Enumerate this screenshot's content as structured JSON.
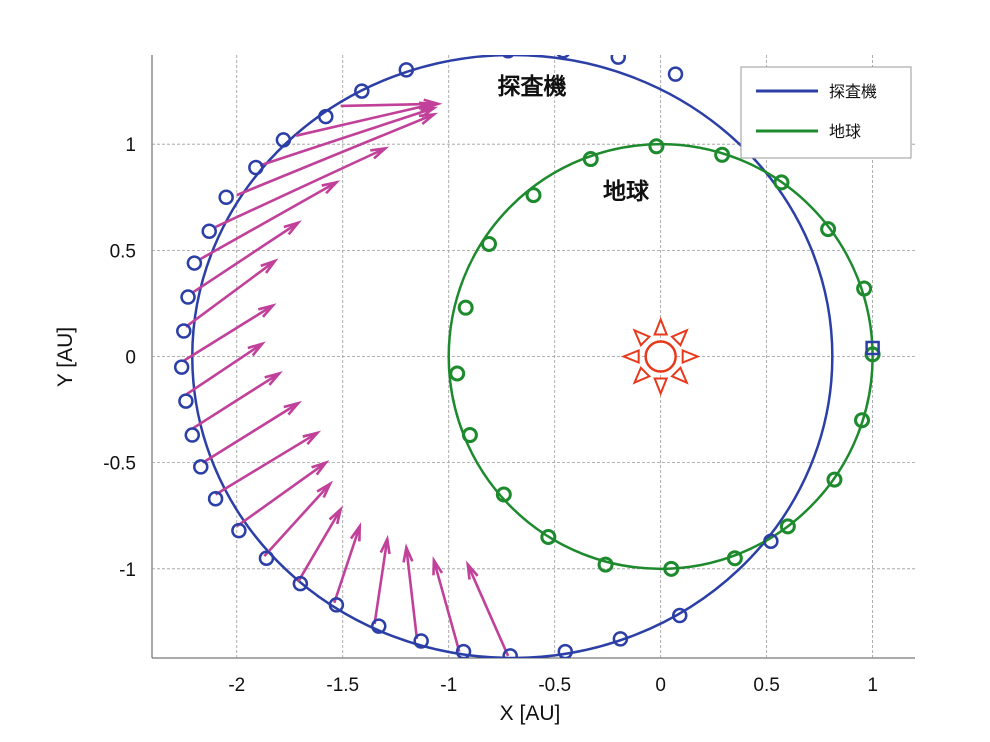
{
  "chart_data": {
    "type": "scatter",
    "title": "",
    "xlabel": "X [AU]",
    "ylabel": "Y [AU]",
    "xlim": [
      -2.4,
      1.2
    ],
    "ylim": [
      -1.42,
      1.42
    ],
    "xticks": [
      "-2",
      "-1.5",
      "-1",
      "-0.5",
      "0",
      "0.5",
      "1"
    ],
    "yticks": [
      "1",
      "0.5",
      "0",
      "-0.5",
      "-1"
    ],
    "grid": true,
    "legend_position": "top-right",
    "colors": {
      "probe": "#2b3fa6",
      "earth": "#1e8a2e",
      "thrust": "#c0409a",
      "sun": "#e8391c"
    },
    "annotations": {
      "probe": "探査機",
      "earth": "地球"
    },
    "series": [
      {
        "name": "探査機",
        "orbit_center": [
          -0.7,
          0.0
        ],
        "orbit_radii": [
          1.51,
          1.42
        ],
        "markers": [
          [
            -0.72,
            1.44
          ],
          [
            -0.46,
            1.44
          ],
          [
            -0.2,
            1.41
          ],
          [
            0.07,
            1.33
          ],
          [
            -1.2,
            1.35
          ],
          [
            -1.41,
            1.25
          ],
          [
            -1.58,
            1.13
          ],
          [
            -1.78,
            1.02
          ],
          [
            -1.91,
            0.89
          ],
          [
            -2.05,
            0.75
          ],
          [
            -2.13,
            0.59
          ],
          [
            -2.2,
            0.44
          ],
          [
            -2.23,
            0.28
          ],
          [
            -2.25,
            0.12
          ],
          [
            -2.26,
            -0.05
          ],
          [
            -2.24,
            -0.21
          ],
          [
            -2.21,
            -0.37
          ],
          [
            -2.17,
            -0.52
          ],
          [
            -2.1,
            -0.67
          ],
          [
            -1.99,
            -0.82
          ],
          [
            -1.86,
            -0.95
          ],
          [
            -1.7,
            -1.07
          ],
          [
            -1.53,
            -1.17
          ],
          [
            -1.33,
            -1.27
          ],
          [
            -1.13,
            -1.34
          ],
          [
            -0.93,
            -1.39
          ],
          [
            -0.71,
            -1.41
          ],
          [
            -0.45,
            -1.39
          ],
          [
            -0.19,
            -1.33
          ],
          [
            0.09,
            -1.22
          ],
          [
            0.52,
            -0.87
          ]
        ],
        "end_marker": [
          1.0,
          0.04
        ]
      },
      {
        "name": "地球",
        "radius": 1.0,
        "markers": [
          [
            -0.02,
            0.99
          ],
          [
            0.29,
            0.95
          ],
          [
            0.57,
            0.82
          ],
          [
            0.79,
            0.6
          ],
          [
            0.96,
            0.32
          ],
          [
            1.0,
            0.01
          ],
          [
            0.95,
            -0.3
          ],
          [
            0.82,
            -0.58
          ],
          [
            0.6,
            -0.8
          ],
          [
            0.35,
            -0.95
          ],
          [
            0.05,
            -1.0
          ],
          [
            -0.26,
            -0.98
          ],
          [
            -0.53,
            -0.85
          ],
          [
            -0.74,
            -0.65
          ],
          [
            -0.9,
            -0.37
          ],
          [
            -0.96,
            -0.08
          ],
          [
            -0.92,
            0.23
          ],
          [
            -0.81,
            0.53
          ],
          [
            -0.6,
            0.76
          ],
          [
            -0.33,
            0.93
          ]
        ]
      }
    ],
    "thrust_arrows": [
      [
        -1.51,
        1.18,
        -1.05,
        1.19
      ],
      [
        -1.72,
        1.04,
        -1.07,
        1.19
      ],
      [
        -1.89,
        0.9,
        -1.07,
        1.17
      ],
      [
        -2.0,
        0.76,
        -1.07,
        1.14
      ],
      [
        -2.1,
        0.61,
        -1.3,
        0.98
      ],
      [
        -2.17,
        0.46,
        -1.53,
        0.82
      ],
      [
        -2.21,
        0.3,
        -1.71,
        0.63
      ],
      [
        -2.24,
        0.14,
        -1.82,
        0.45
      ],
      [
        -2.25,
        -0.02,
        -1.83,
        0.24
      ],
      [
        -2.24,
        -0.18,
        -1.88,
        0.06
      ],
      [
        -2.21,
        -0.34,
        -1.8,
        -0.08
      ],
      [
        -2.16,
        -0.5,
        -1.71,
        -0.22
      ],
      [
        -2.1,
        -0.65,
        -1.62,
        -0.36
      ],
      [
        -2.0,
        -0.8,
        -1.58,
        -0.5
      ],
      [
        -1.87,
        -0.94,
        -1.56,
        -0.6
      ],
      [
        -1.71,
        -1.06,
        -1.51,
        -0.72
      ],
      [
        -1.54,
        -1.16,
        -1.42,
        -0.8
      ],
      [
        -1.35,
        -1.26,
        -1.29,
        -0.86
      ],
      [
        -1.15,
        -1.33,
        -1.2,
        -0.9
      ],
      [
        -0.95,
        -1.39,
        -1.07,
        -0.96
      ],
      [
        -0.72,
        -1.41,
        -0.91,
        -0.98
      ]
    ],
    "sun": [
      0.0,
      0.0
    ]
  }
}
